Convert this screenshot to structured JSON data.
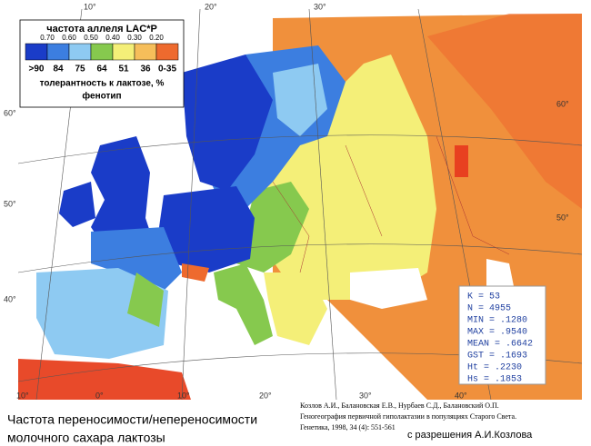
{
  "legend": {
    "title": "частота аллеля LAC*P",
    "allele_ticks": [
      "0.70",
      "0.60",
      "0.50",
      "0.40",
      "0.30",
      "0.20"
    ],
    "tolerance_ticks": [
      ">90",
      "84",
      "75",
      "64",
      "51",
      "36",
      "0-35"
    ],
    "colors": [
      "#1a3cc8",
      "#3c7ee0",
      "#8ecaf2",
      "#86c94e",
      "#f4ef78",
      "#f6be5a",
      "#ee6a2e"
    ],
    "subtitle": "толерантность к лактозе, %",
    "subtitle2": "фенотип"
  },
  "stats": [
    "K = 53",
    "N = 4955",
    "MIN = .1280",
    "MAX = .9540",
    "MEAN = .6642",
    "GST = .1693",
    "Ht = .2230",
    "Hs = .1853"
  ],
  "graticule": {
    "top": [
      "10°",
      "20°",
      "30°"
    ],
    "left": [
      "40°",
      "50°",
      "60°"
    ],
    "right": [
      "60°",
      "50°"
    ],
    "bottom": [
      "10°",
      "0°",
      "10°",
      "20°",
      "30°",
      "40°"
    ]
  },
  "caption": [
    "Частота переносимости/непереносимости",
    "молочного сахара лактозы"
  ],
  "citation": [
    "Козлов А.И., Балановская Е.В., Нурбаев С.Д., Балановский О.П.",
    "Геногеография первичной гиполактазии в популяциях Старого Света.",
    "Генетика, 1998, 34 (4): 551-561"
  ],
  "credit": "с разрешения А.И.Козлова"
}
